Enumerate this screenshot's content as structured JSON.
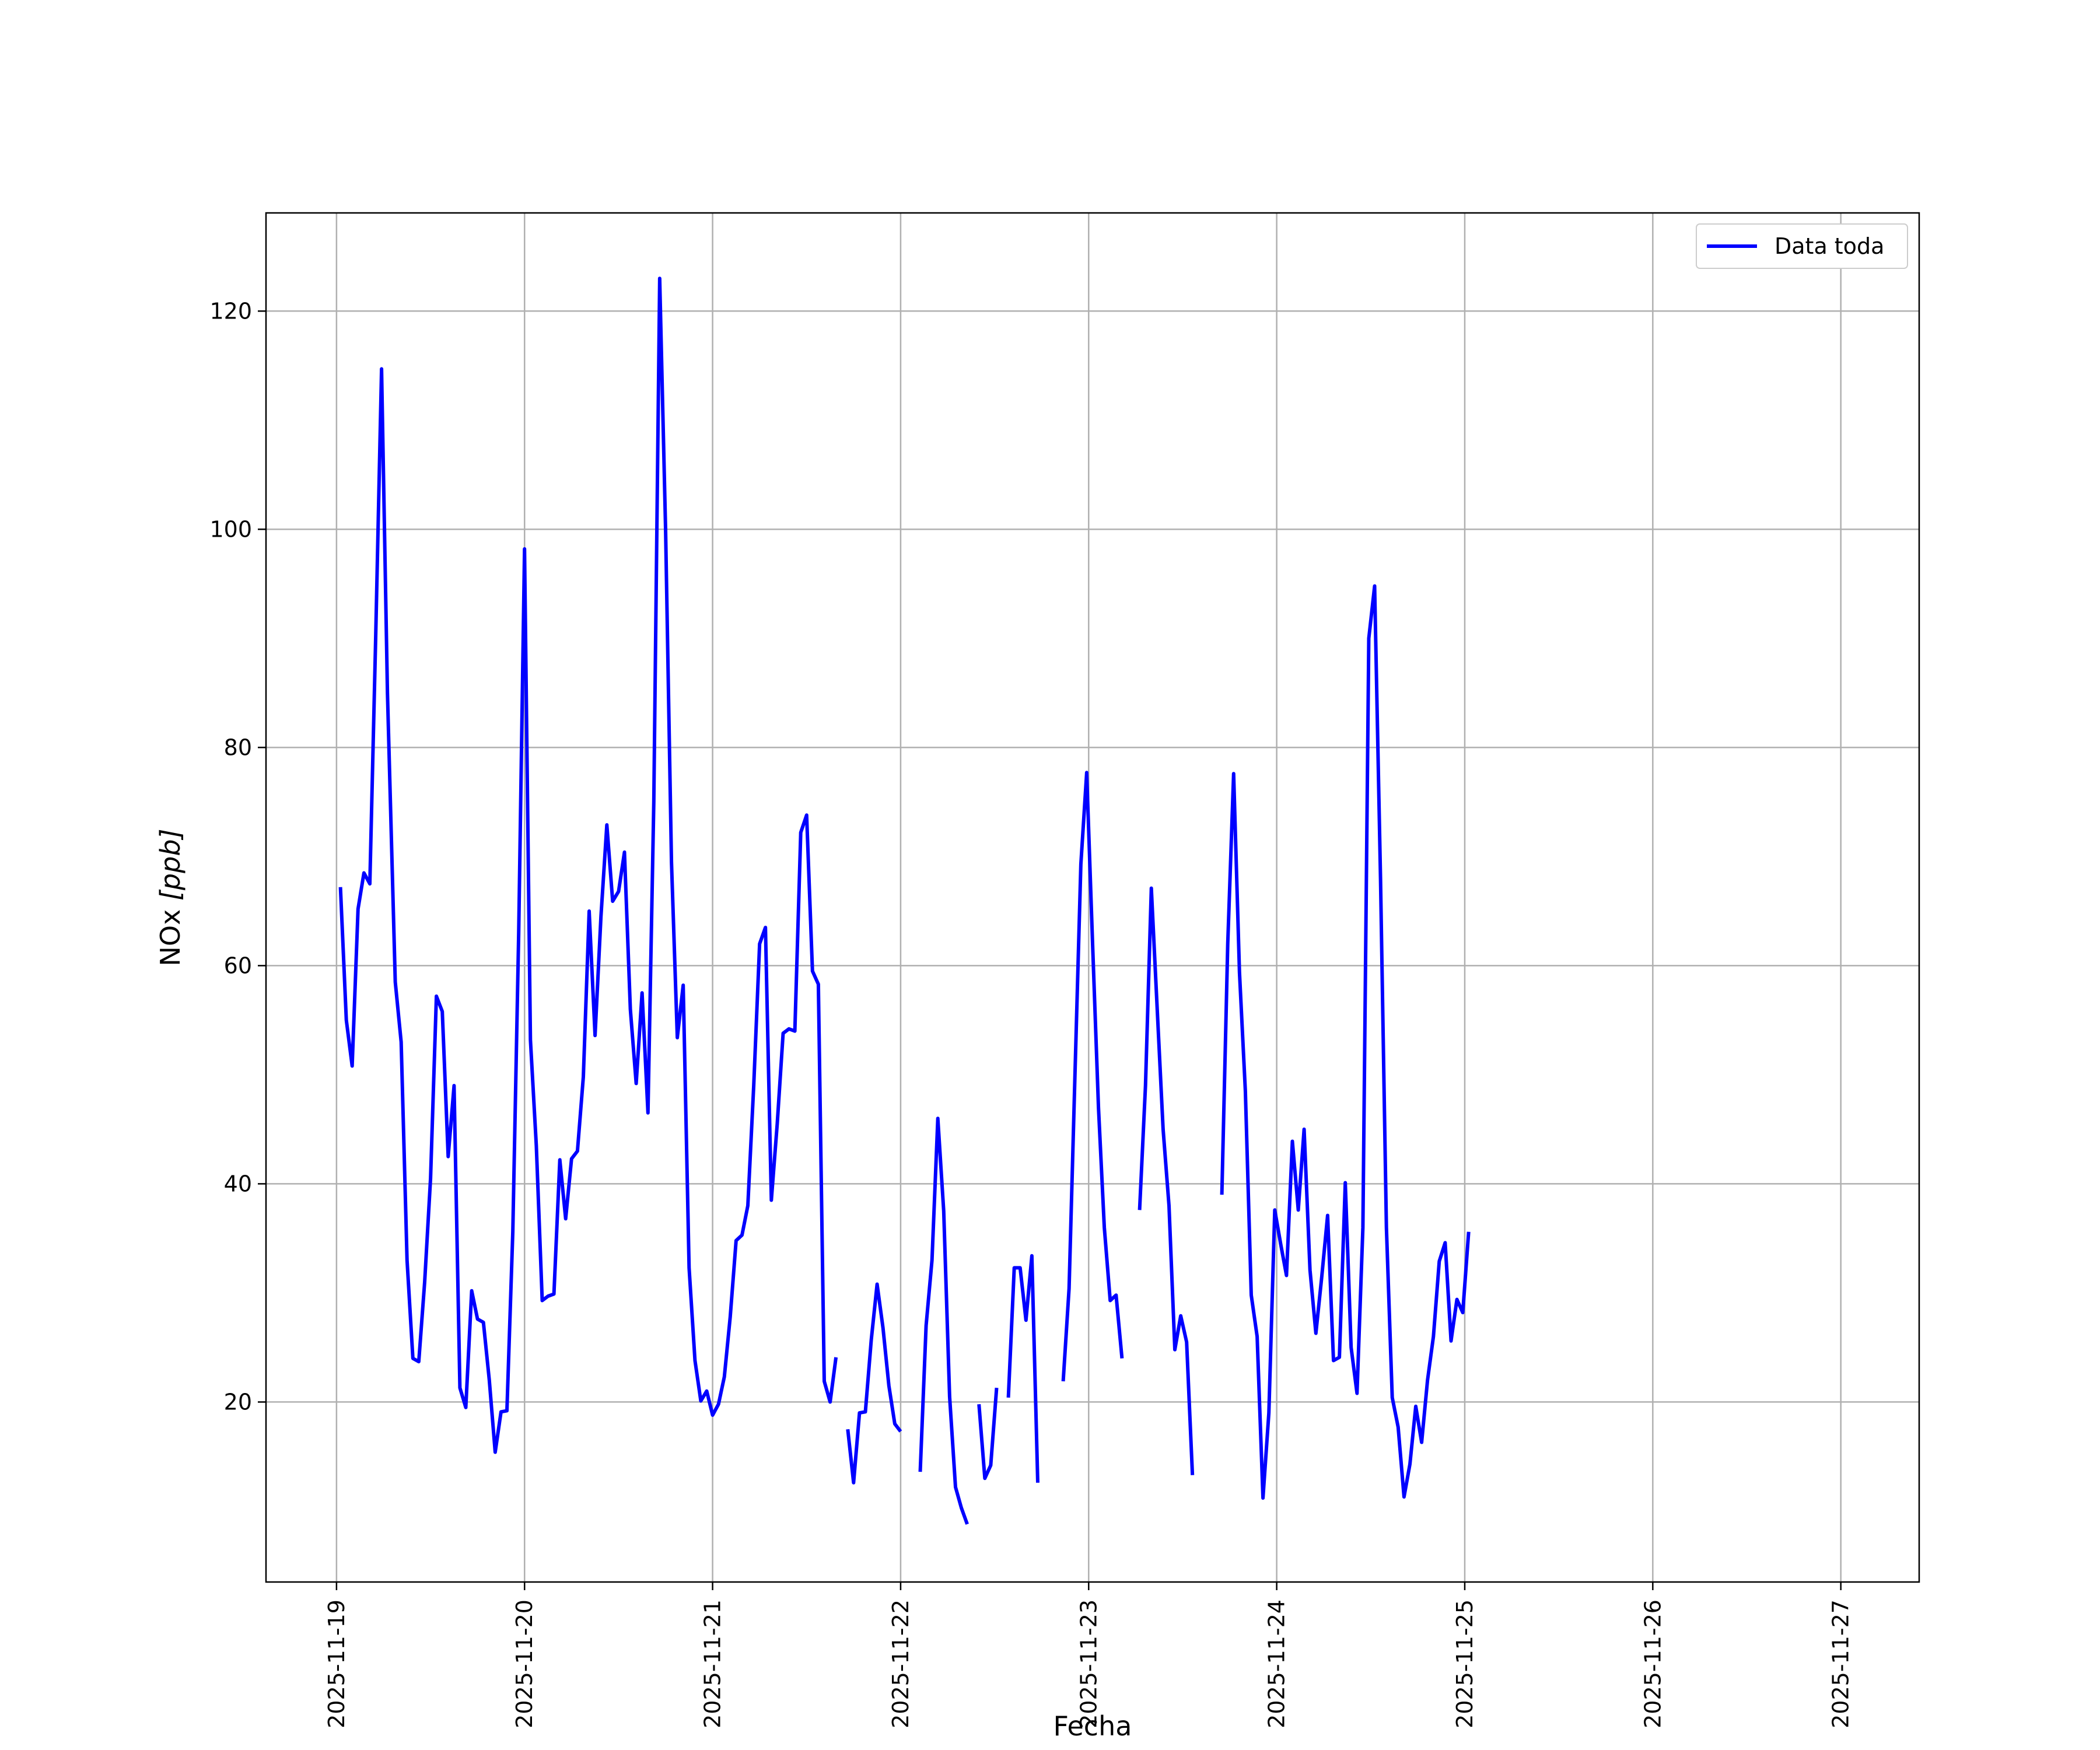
{
  "chart_data": {
    "type": "line",
    "xlabel": "Fecha",
    "ylabel_main": "NOx ",
    "ylabel_unit": "[ppb]",
    "x_tick_labels": [
      "2025-11-19",
      "2025-11-20",
      "2025-11-21",
      "2025-11-22",
      "2025-11-23",
      "2025-11-24",
      "2025-11-25",
      "2025-11-26",
      "2025-11-27"
    ],
    "y_tick_labels": [
      "20",
      "40",
      "60",
      "80",
      "100",
      "120"
    ],
    "y_ticks": [
      20,
      40,
      60,
      80,
      100,
      120
    ],
    "xlim": [
      "2025-11-18 15:00",
      "2025-11-27 10:00"
    ],
    "ylim": [
      3.5,
      129
    ],
    "grid": true,
    "legend_position": "top-right",
    "line_color": "#0000ff",
    "series": [
      {
        "name": "Data toda",
        "segments": [
          [
            [
              "2025-11-19 00:30",
              67.2
            ],
            [
              "2025-11-19 01:15",
              55.0
            ],
            [
              "2025-11-19 02:00",
              50.8
            ],
            [
              "2025-11-19 02:45",
              65.2
            ],
            [
              "2025-11-19 03:30",
              68.5
            ],
            [
              "2025-11-19 04:15",
              67.5
            ],
            [
              "2025-11-19 05:00",
              90.0
            ],
            [
              "2025-11-19 05:45",
              114.7
            ],
            [
              "2025-11-19 06:30",
              85.0
            ],
            [
              "2025-11-19 07:30",
              58.5
            ],
            [
              "2025-11-19 08:15",
              53.0
            ],
            [
              "2025-11-19 09:00",
              33.0
            ],
            [
              "2025-11-19 09:45",
              24.0
            ],
            [
              "2025-11-19 10:30",
              23.7
            ],
            [
              "2025-11-19 11:15",
              31.0
            ],
            [
              "2025-11-19 12:00",
              40.5
            ],
            [
              "2025-11-19 12:45",
              57.2
            ],
            [
              "2025-11-19 13:30",
              55.8
            ],
            [
              "2025-11-19 14:15",
              42.5
            ],
            [
              "2025-11-19 15:00",
              49.0
            ],
            [
              "2025-11-19 15:45",
              21.3
            ],
            [
              "2025-11-19 16:30",
              19.5
            ],
            [
              "2025-11-19 17:15",
              30.2
            ],
            [
              "2025-11-19 18:00",
              27.6
            ],
            [
              "2025-11-19 18:45",
              27.3
            ],
            [
              "2025-11-19 19:30",
              22.0
            ],
            [
              "2025-11-19 20:15",
              15.4
            ],
            [
              "2025-11-19 21:00",
              19.1
            ],
            [
              "2025-11-19 21:45",
              19.2
            ],
            [
              "2025-11-19 22:30",
              35.6
            ],
            [
              "2025-11-19 23:15",
              63.0
            ],
            [
              "2025-11-20 00:00",
              98.2
            ],
            [
              "2025-11-20 00:45",
              53.2
            ],
            [
              "2025-11-20 01:30",
              43.5
            ],
            [
              "2025-11-20 02:15",
              29.3
            ],
            [
              "2025-11-20 03:00",
              29.7
            ],
            [
              "2025-11-20 03:45",
              29.9
            ],
            [
              "2025-11-20 04:30",
              42.2
            ],
            [
              "2025-11-20 05:15",
              36.8
            ],
            [
              "2025-11-20 06:00",
              42.3
            ],
            [
              "2025-11-20 06:45",
              43.0
            ],
            [
              "2025-11-20 07:30",
              49.8
            ],
            [
              "2025-11-20 08:15",
              65.0
            ],
            [
              "2025-11-20 09:00",
              53.6
            ],
            [
              "2025-11-20 09:45",
              64.5
            ],
            [
              "2025-11-20 10:30",
              72.9
            ],
            [
              "2025-11-20 11:15",
              65.9
            ],
            [
              "2025-11-20 12:00",
              66.8
            ],
            [
              "2025-11-20 12:45",
              70.4
            ],
            [
              "2025-11-20 13:30",
              56.0
            ],
            [
              "2025-11-20 14:15",
              49.2
            ],
            [
              "2025-11-20 15:00",
              57.5
            ],
            [
              "2025-11-20 15:45",
              46.5
            ],
            [
              "2025-11-20 16:30",
              75.0
            ],
            [
              "2025-11-20 17:15",
              123.0
            ],
            [
              "2025-11-20 18:00",
              100.0
            ],
            [
              "2025-11-20 18:45",
              69.5
            ],
            [
              "2025-11-20 19:30",
              53.4
            ],
            [
              "2025-11-20 20:15",
              58.2
            ],
            [
              "2025-11-20 21:00",
              32.3
            ],
            [
              "2025-11-20 21:45",
              23.8
            ],
            [
              "2025-11-20 22:30",
              20.1
            ],
            [
              "2025-11-20 23:15",
              21.0
            ],
            [
              "2025-11-21 00:00",
              18.8
            ],
            [
              "2025-11-21 00:45",
              19.8
            ],
            [
              "2025-11-21 01:30",
              22.3
            ],
            [
              "2025-11-21 02:15",
              27.8
            ],
            [
              "2025-11-21 03:00",
              34.8
            ],
            [
              "2025-11-21 03:45",
              35.3
            ],
            [
              "2025-11-21 04:30",
              38.0
            ],
            [
              "2025-11-21 05:15",
              49.0
            ],
            [
              "2025-11-21 06:00",
              62.0
            ],
            [
              "2025-11-21 06:45",
              63.5
            ],
            [
              "2025-11-21 07:30",
              38.5
            ],
            [
              "2025-11-21 08:15",
              45.5
            ],
            [
              "2025-11-21 09:00",
              53.8
            ],
            [
              "2025-11-21 09:45",
              54.2
            ],
            [
              "2025-11-21 10:30",
              54.0
            ],
            [
              "2025-11-21 11:15",
              72.2
            ],
            [
              "2025-11-21 12:00",
              73.8
            ],
            [
              "2025-11-21 12:45",
              59.5
            ],
            [
              "2025-11-21 13:30",
              58.3
            ],
            [
              "2025-11-21 14:15",
              21.9
            ],
            [
              "2025-11-21 15:00",
              20.0
            ],
            [
              "2025-11-21 15:45",
              24.1
            ]
          ],
          [
            [
              "2025-11-21 17:15",
              17.5
            ],
            [
              "2025-11-21 18:00",
              12.6
            ],
            [
              "2025-11-21 18:45",
              19.0
            ],
            [
              "2025-11-21 19:30",
              19.1
            ],
            [
              "2025-11-21 20:15",
              25.7
            ],
            [
              "2025-11-21 21:00",
              30.8
            ],
            [
              "2025-11-21 21:45",
              26.8
            ],
            [
              "2025-11-21 22:30",
              21.5
            ],
            [
              "2025-11-21 23:15",
              18.0
            ],
            [
              "2025-11-22 00:00",
              17.3
            ]
          ],
          [
            [
              "2025-11-22 02:30",
              13.6
            ],
            [
              "2025-11-22 03:15",
              27.0
            ],
            [
              "2025-11-22 04:00",
              33.0
            ],
            [
              "2025-11-22 04:45",
              46.0
            ],
            [
              "2025-11-22 05:30",
              37.5
            ],
            [
              "2025-11-22 06:15",
              20.5
            ],
            [
              "2025-11-22 07:00",
              12.2
            ],
            [
              "2025-11-22 07:45",
              10.3
            ],
            [
              "2025-11-22 08:30",
              8.8
            ]
          ],
          [
            [
              "2025-11-22 10:00",
              19.8
            ],
            [
              "2025-11-22 10:45",
              13.0
            ],
            [
              "2025-11-22 11:30",
              14.2
            ],
            [
              "2025-11-22 12:15",
              21.3
            ]
          ],
          [
            [
              "2025-11-22 13:45",
              20.4
            ],
            [
              "2025-11-22 14:30",
              32.3
            ],
            [
              "2025-11-22 15:15",
              32.3
            ],
            [
              "2025-11-22 16:00",
              27.5
            ],
            [
              "2025-11-22 16:45",
              33.4
            ],
            [
              "2025-11-22 17:30",
              12.6
            ]
          ],
          [
            [
              "2025-11-22 20:45",
              21.9
            ],
            [
              "2025-11-22 21:30",
              30.4
            ],
            [
              "2025-11-22 22:15",
              50.0
            ],
            [
              "2025-11-22 23:00",
              69.3
            ],
            [
              "2025-11-22 23:45",
              77.7
            ],
            [
              "2025-11-23 00:30",
              62.0
            ],
            [
              "2025-11-23 01:15",
              47.0
            ],
            [
              "2025-11-23 02:00",
              36.0
            ],
            [
              "2025-11-23 02:45",
              29.3
            ],
            [
              "2025-11-23 03:30",
              29.8
            ],
            [
              "2025-11-23 04:15",
              24.0
            ]
          ],
          [
            [
              "2025-11-23 06:30",
              37.6
            ],
            [
              "2025-11-23 07:15",
              49.0
            ],
            [
              "2025-11-23 08:00",
              67.1
            ],
            [
              "2025-11-23 08:45",
              56.0
            ],
            [
              "2025-11-23 09:30",
              45.0
            ],
            [
              "2025-11-23 10:15",
              38.0
            ],
            [
              "2025-11-23 11:00",
              24.8
            ],
            [
              "2025-11-23 11:45",
              27.9
            ],
            [
              "2025-11-23 12:30",
              25.5
            ],
            [
              "2025-11-23 13:15",
              13.3
            ]
          ],
          [
            [
              "2025-11-23 17:00",
              39.0
            ],
            [
              "2025-11-23 17:45",
              62.0
            ],
            [
              "2025-11-23 18:30",
              77.6
            ],
            [
              "2025-11-23 19:15",
              59.4
            ],
            [
              "2025-11-23 20:00",
              48.5
            ],
            [
              "2025-11-23 20:45",
              29.8
            ],
            [
              "2025-11-23 21:30",
              26.0
            ],
            [
              "2025-11-23 22:15",
              11.2
            ],
            [
              "2025-11-23 23:00",
              19.0
            ],
            [
              "2025-11-23 23:45",
              37.6
            ],
            [
              "2025-11-24 00:30",
              34.5
            ],
            [
              "2025-11-24 01:15",
              31.6
            ],
            [
              "2025-11-24 02:00",
              43.9
            ],
            [
              "2025-11-24 02:45",
              37.6
            ],
            [
              "2025-11-24 03:30",
              45.0
            ],
            [
              "2025-11-24 04:15",
              32.1
            ],
            [
              "2025-11-24 05:00",
              26.3
            ],
            [
              "2025-11-24 05:45",
              31.5
            ],
            [
              "2025-11-24 06:30",
              37.1
            ],
            [
              "2025-11-24 07:15",
              23.8
            ],
            [
              "2025-11-24 08:00",
              24.1
            ],
            [
              "2025-11-24 08:45",
              40.1
            ],
            [
              "2025-11-24 09:30",
              25.0
            ],
            [
              "2025-11-24 10:15",
              20.8
            ],
            [
              "2025-11-24 11:00",
              36.0
            ],
            [
              "2025-11-24 11:45",
              90.0
            ],
            [
              "2025-11-24 12:30",
              94.8
            ],
            [
              "2025-11-24 13:15",
              68.0
            ],
            [
              "2025-11-24 14:00",
              36.0
            ],
            [
              "2025-11-24 14:45",
              20.4
            ],
            [
              "2025-11-24 15:30",
              17.7
            ],
            [
              "2025-11-24 16:15",
              11.3
            ],
            [
              "2025-11-24 17:00",
              14.3
            ],
            [
              "2025-11-24 17:45",
              19.6
            ],
            [
              "2025-11-24 18:30",
              16.3
            ],
            [
              "2025-11-24 19:15",
              22.0
            ],
            [
              "2025-11-24 20:00",
              26.0
            ],
            [
              "2025-11-24 20:45",
              32.9
            ],
            [
              "2025-11-24 21:30",
              34.6
            ],
            [
              "2025-11-24 22:15",
              25.6
            ],
            [
              "2025-11-24 23:00",
              29.4
            ],
            [
              "2025-11-24 23:45",
              28.2
            ],
            [
              "2025-11-25 00:30",
              35.6
            ]
          ]
        ]
      }
    ]
  }
}
